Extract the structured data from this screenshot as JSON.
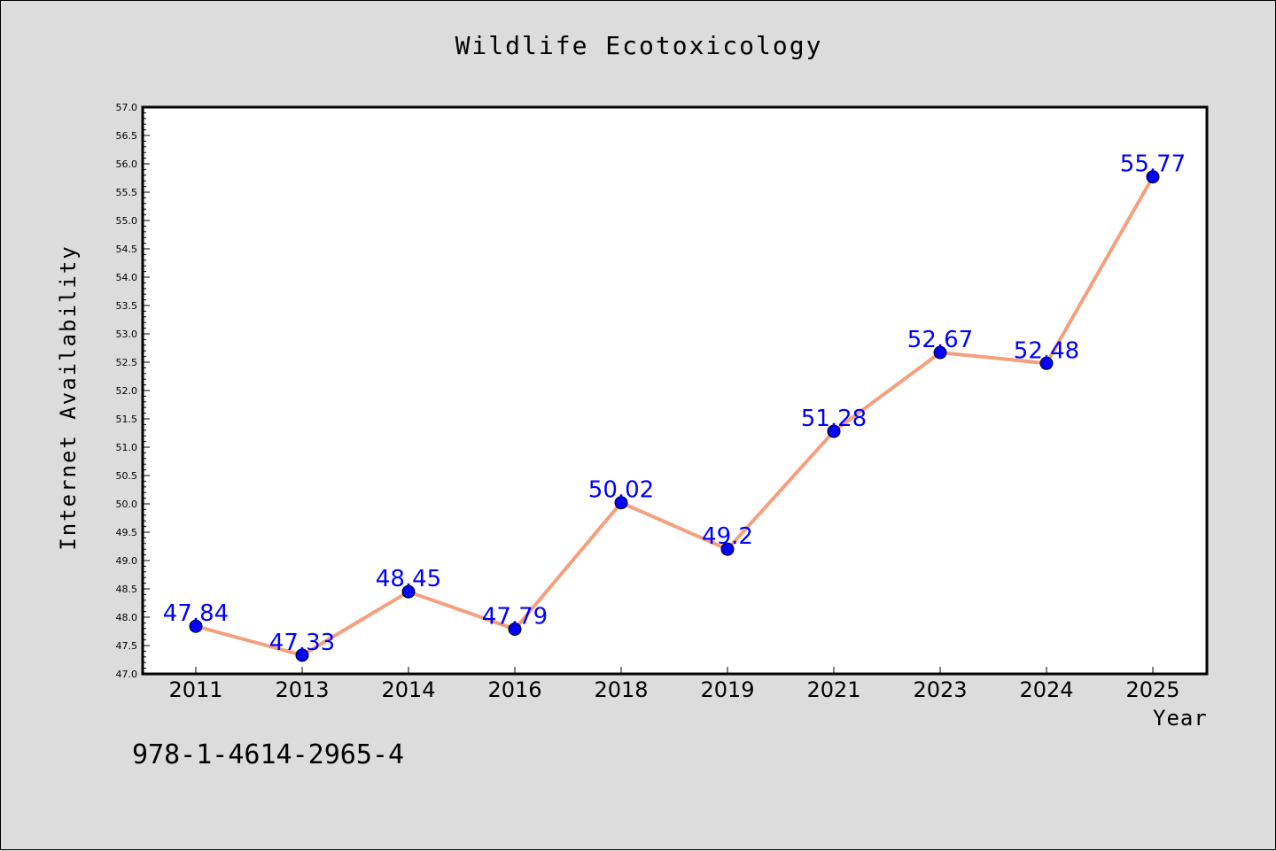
{
  "chart_data": {
    "type": "line",
    "title": "Wildlife Ecotoxicology",
    "xlabel": "Year",
    "ylabel": "Internet Availability",
    "categories": [
      "2011",
      "2013",
      "2014",
      "2016",
      "2018",
      "2019",
      "2021",
      "2023",
      "2024",
      "2025"
    ],
    "series": [
      {
        "values": [
          47.84,
          47.33,
          48.45,
          47.79,
          50.02,
          49.2,
          51.28,
          52.67,
          52.48,
          55.77
        ],
        "line_color": "#f4a07e",
        "marker_color": "#0000ff"
      }
    ],
    "data_labels": [
      "47.84",
      "47.33",
      "48.45",
      "47.79",
      "50.02",
      "49.2",
      "51.28",
      "52.67",
      "52.48",
      "55.77"
    ],
    "ylim": [
      47.0,
      57.0
    ],
    "yticks": [
      "47.0",
      "47.5",
      "48.0",
      "48.5",
      "49.0",
      "49.5",
      "50.0",
      "50.5",
      "51.0",
      "51.5",
      "52.0",
      "52.5",
      "53.0",
      "53.5",
      "54.0",
      "54.5",
      "55.0",
      "55.5",
      "56.0",
      "56.5",
      "57.0"
    ],
    "grid": false,
    "legend": "none"
  },
  "footer_text": "978-1-4614-2965-4",
  "colors": {
    "background": "#dcdcdc",
    "plot_background": "#ffffff",
    "line": "#f4a07e",
    "marker": "#0000ff",
    "data_label": "#0000ff"
  }
}
